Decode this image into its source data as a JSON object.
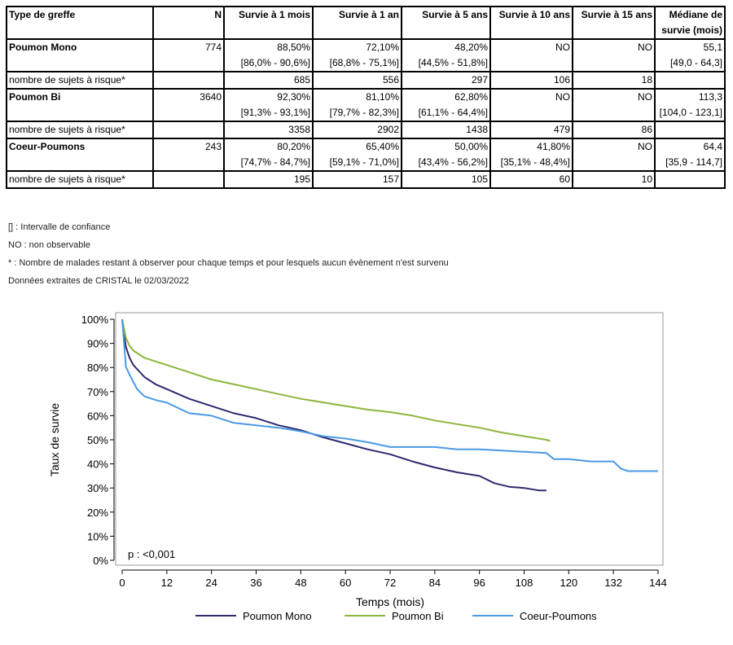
{
  "table": {
    "headers": [
      "Type de greffe",
      "N",
      "Survie à 1 mois",
      "Survie à 1 an",
      "Survie à 5 ans",
      "Survie à 10 ans",
      "Survie à 15 ans",
      "Médiane de",
      "survie (mois)"
    ],
    "rows": [
      {
        "name": "Poumon Mono",
        "n": "774",
        "s1m": "88,50%",
        "s1m_ci": "[86,0% - 90,6%]",
        "s1a": "72,10%",
        "s1a_ci": "[68,8% - 75,1%]",
        "s5a": "48,20%",
        "s5a_ci": "[44,5% - 51,8%]",
        "s10a": "NO",
        "s10a_ci": "",
        "s15a": "NO",
        "med": "55,1",
        "med_ci": "[49,0 - 64,3]",
        "risk_label": "nombre de sujets à risque*",
        "risk": [
          "685",
          "556",
          "297",
          "106",
          "18"
        ]
      },
      {
        "name": "Poumon Bi",
        "n": "3640",
        "s1m": "92,30%",
        "s1m_ci": "[91,3% - 93,1%]",
        "s1a": "81,10%",
        "s1a_ci": "[79,7% - 82,3%]",
        "s5a": "62,80%",
        "s5a_ci": "[61,1% - 64,4%]",
        "s10a": "NO",
        "s10a_ci": "",
        "s15a": "NO",
        "med": "113,3",
        "med_ci": "[104,0 - 123,1]",
        "risk_label": "nombre de sujets à risque*",
        "risk": [
          "3358",
          "2902",
          "1438",
          "479",
          "86"
        ]
      },
      {
        "name": "Coeur-Poumons",
        "n": "243",
        "s1m": "80,20%",
        "s1m_ci": "[74,7% - 84,7%]",
        "s1a": "65,40%",
        "s1a_ci": "[59,1% - 71,0%]",
        "s5a": "50,00%",
        "s5a_ci": "[43,4% - 56,2%]",
        "s10a": "41,80%",
        "s10a_ci": "[35,1% - 48,4%]",
        "s15a": "NO",
        "med": "64,4",
        "med_ci": "[35,9 - 114,7]",
        "risk_label": "nombre de sujets à risque*",
        "risk": [
          "195",
          "157",
          "105",
          "60",
          "10"
        ]
      }
    ]
  },
  "notes": [
    "[] : Intervalle de confiance",
    "NO : non observable",
    "* : Nombre de malades restant à observer pour chaque temps et pour lesquels aucun évènement n'est survenu",
    "Données extraites de CRISTAL le 02/03/2022"
  ],
  "chart_data": {
    "type": "line",
    "xlabel": "Temps (mois)",
    "ylabel": "Taux de survie",
    "xlim": [
      0,
      144
    ],
    "ylim": [
      0,
      100
    ],
    "xticks": [
      0,
      12,
      24,
      36,
      48,
      60,
      72,
      84,
      96,
      108,
      120,
      132,
      144
    ],
    "yticks": [
      0,
      10,
      20,
      30,
      40,
      50,
      60,
      70,
      80,
      90,
      100
    ],
    "ytick_suffix": "%",
    "annotation": "p : <0,001",
    "legend_position": "bottom",
    "series": [
      {
        "name": "Poumon Mono",
        "color": "#2e2a6e",
        "x": [
          0,
          1,
          2,
          3,
          6,
          9,
          12,
          18,
          24,
          30,
          36,
          42,
          48,
          54,
          60,
          66,
          72,
          78,
          84,
          90,
          96,
          100,
          104,
          108,
          112,
          114
        ],
        "y": [
          100,
          88.5,
          84,
          81,
          76,
          73,
          71,
          67,
          64,
          61,
          59,
          56,
          54,
          51,
          48.5,
          46,
          44,
          41,
          38.5,
          36.5,
          35,
          32,
          30.5,
          30,
          29,
          29
        ]
      },
      {
        "name": "Poumon Bi",
        "color": "#8db63c",
        "x": [
          0,
          1,
          2,
          3,
          6,
          9,
          12,
          18,
          24,
          30,
          36,
          42,
          48,
          54,
          60,
          66,
          72,
          78,
          84,
          90,
          96,
          102,
          108,
          114,
          115
        ],
        "y": [
          100,
          92.3,
          89,
          87,
          84,
          82.5,
          81,
          78,
          75,
          73,
          71,
          69,
          67,
          65.5,
          64,
          62.5,
          61.5,
          60,
          58,
          56.5,
          55,
          53,
          51.5,
          50,
          49.5
        ]
      },
      {
        "name": "Coeur-Poumons",
        "color": "#4a9ae6",
        "x": [
          0,
          1,
          2,
          3,
          4,
          6,
          9,
          12,
          18,
          24,
          30,
          36,
          42,
          48,
          54,
          60,
          66,
          72,
          78,
          84,
          90,
          96,
          102,
          108,
          114,
          116,
          120,
          126,
          132,
          134,
          136,
          140,
          144
        ],
        "y": [
          100,
          80.2,
          77,
          74,
          71,
          68,
          66.5,
          65.4,
          61,
          60,
          57,
          56,
          55,
          53.5,
          51.5,
          50.5,
          49,
          47,
          47,
          47,
          46,
          46,
          45.5,
          45,
          44.5,
          42,
          42,
          41,
          41,
          38,
          37,
          37,
          37
        ]
      }
    ]
  }
}
